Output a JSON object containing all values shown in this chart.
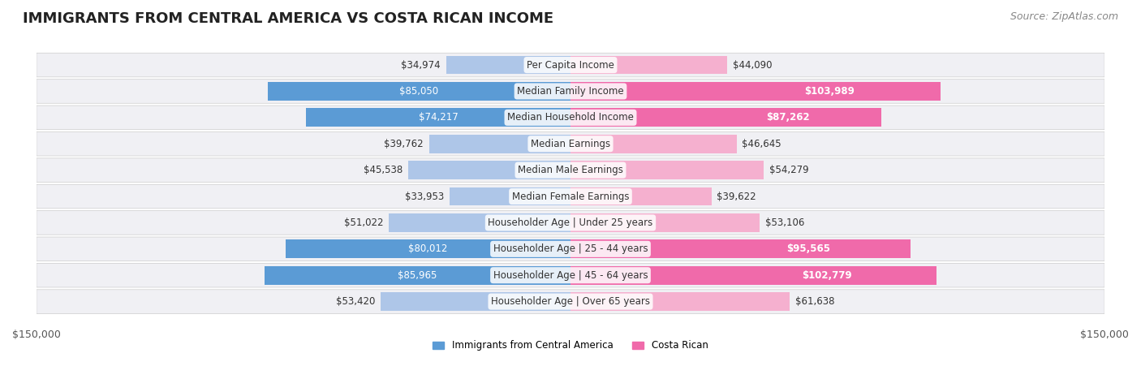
{
  "title": "IMMIGRANTS FROM CENTRAL AMERICA VS COSTA RICAN INCOME",
  "source": "Source: ZipAtlas.com",
  "categories": [
    "Per Capita Income",
    "Median Family Income",
    "Median Household Income",
    "Median Earnings",
    "Median Male Earnings",
    "Median Female Earnings",
    "Householder Age | Under 25 years",
    "Householder Age | 25 - 44 years",
    "Householder Age | 45 - 64 years",
    "Householder Age | Over 65 years"
  ],
  "left_values": [
    34974,
    85050,
    74217,
    39762,
    45538,
    33953,
    51022,
    80012,
    85965,
    53420
  ],
  "right_values": [
    44090,
    103989,
    87262,
    46645,
    54279,
    39622,
    53106,
    95565,
    102779,
    61638
  ],
  "left_labels": [
    "$34,974",
    "$85,050",
    "$74,217",
    "$39,762",
    "$45,538",
    "$33,953",
    "$51,022",
    "$80,012",
    "$85,965",
    "$53,420"
  ],
  "right_labels": [
    "$44,090",
    "$103,989",
    "$87,262",
    "$46,645",
    "$54,279",
    "$39,622",
    "$53,106",
    "$95,565",
    "$102,779",
    "$61,638"
  ],
  "left_color_strong": "#5b9bd5",
  "left_color_light": "#aec6e8",
  "right_color_strong": "#f06aaa",
  "right_color_light": "#f5b0cf",
  "threshold_strong": 70000,
  "max_value": 150000,
  "legend_left": "Immigrants from Central America",
  "legend_right": "Costa Rican",
  "background_row": "#f0f0f4",
  "background_fig": "#ffffff",
  "title_fontsize": 13,
  "source_fontsize": 9,
  "label_fontsize": 8.5,
  "axis_label_fontsize": 9
}
